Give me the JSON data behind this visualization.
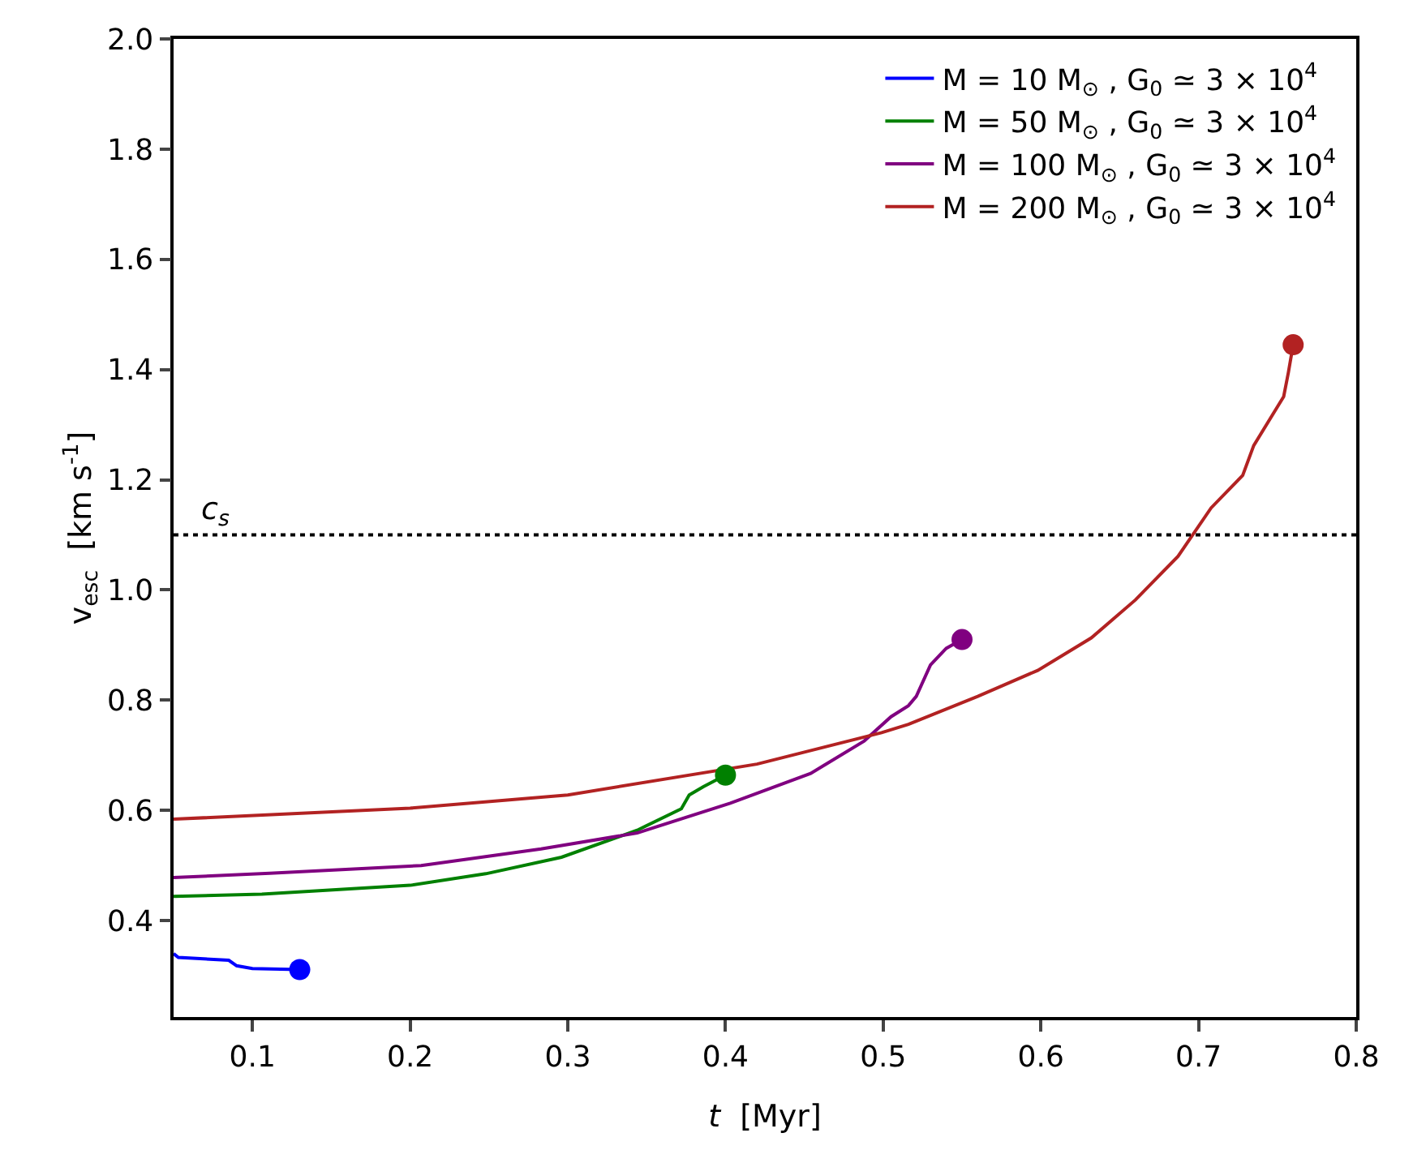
{
  "chart_data": {
    "type": "line",
    "xlabel": "t  [Myr]",
    "ylabel": "v$_{esc}$  [km s$^{-1}$]",
    "xlim": [
      0.05,
      0.8
    ],
    "xticks": [
      0.1,
      0.2,
      0.3,
      0.4,
      0.5,
      0.6,
      0.7,
      0.8
    ],
    "ylim": [
      0.225,
      2.0
    ],
    "yticks": [
      0.4,
      0.6,
      0.8,
      {
        "value": 1,
        "label": "1.0"
      },
      1.2,
      1.4,
      1.6,
      1.8,
      {
        "value": 2,
        "label": "2.0"
      }
    ],
    "grid": false,
    "legend": "top right",
    "marker": "none",
    "line_style": "solid",
    "ref_lines": [
      {
        "axis": "y",
        "value": 1.1,
        "label": "c$_{s}$",
        "line_style": "dotted",
        "color": "#000000"
      }
    ],
    "series": [
      {
        "name": "M = 10 M$_{⊙}$ , G$_{0}$ ≃ 3 × 10$^{4}$",
        "color": "#0000ff",
        "x": [
          0.05,
          0.053,
          0.085,
          0.09,
          0.1,
          0.13
        ],
        "values": [
          0.34,
          0.333,
          0.328,
          0.318,
          0.313,
          0.311
        ]
      },
      {
        "name": "M = 50 M$_{⊙}$ , G$_{0}$ ≃ 3 × 10$^{4}$",
        "color": "#008000",
        "x": [
          0.05,
          0.106,
          0.2,
          0.248,
          0.296,
          0.344,
          0.372,
          0.377,
          0.386,
          0.4
        ],
        "values": [
          0.444,
          0.448,
          0.464,
          0.485,
          0.515,
          0.564,
          0.603,
          0.628,
          0.643,
          0.664
        ]
      },
      {
        "name": "M = 100 M$_{⊙}$ , G$_{0}$ ≃ 3 × 10$^{4}$",
        "color": "#800080",
        "x": [
          0.05,
          0.111,
          0.207,
          0.283,
          0.344,
          0.403,
          0.454,
          0.488,
          0.505,
          0.516,
          0.521,
          0.53,
          0.54,
          0.55
        ],
        "values": [
          0.478,
          0.486,
          0.5,
          0.53,
          0.559,
          0.613,
          0.667,
          0.726,
          0.77,
          0.79,
          0.807,
          0.864,
          0.894,
          0.91
        ]
      },
      {
        "name": "M = 200 M$_{⊙}$ , G$_{0}$ ≃ 3 × 10$^{4}$",
        "color": "#b22222",
        "x": [
          0.05,
          0.2,
          0.3,
          0.42,
          0.499,
          0.516,
          0.56,
          0.598,
          0.632,
          0.66,
          0.687,
          0.708,
          0.728,
          0.735,
          0.754,
          0.757,
          0.76
        ],
        "values": [
          0.584,
          0.604,
          0.628,
          0.684,
          0.741,
          0.756,
          0.807,
          0.854,
          0.913,
          0.982,
          1.061,
          1.149,
          1.208,
          1.262,
          1.351,
          1.395,
          1.445
        ]
      },
      {
        "type": "scatter",
        "marker": "circle",
        "color": "#0000ff",
        "x": [
          0.13
        ],
        "values": [
          0.311
        ]
      },
      {
        "type": "scatter",
        "marker": "circle",
        "color": "#008000",
        "x": [
          0.4
        ],
        "values": [
          0.664
        ]
      },
      {
        "type": "scatter",
        "marker": "circle",
        "color": "#800080",
        "x": [
          0.55
        ],
        "values": [
          0.91
        ]
      },
      {
        "type": "scatter",
        "marker": "circle",
        "color": "#b22222",
        "x": [
          0.76
        ],
        "values": [
          1.445
        ]
      }
    ]
  }
}
